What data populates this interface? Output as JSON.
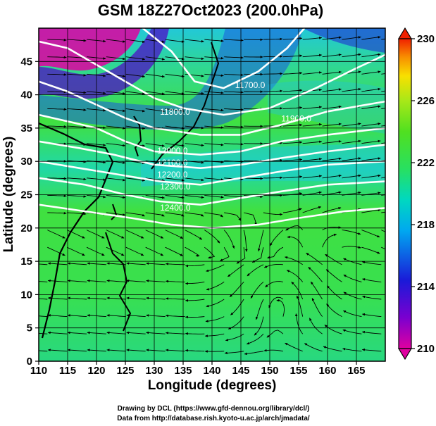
{
  "title": "GSM 18Z27Oct2023 (200.0hPa)",
  "xlabel": "Longitude (degrees)",
  "ylabel": "Latitude  (degrees)",
  "x_ticks": [
    "110",
    "115",
    "120",
    "125",
    "130",
    "135",
    "140",
    "145",
    "150",
    "155",
    "160",
    "165"
  ],
  "y_ticks": [
    "0",
    "5",
    "10",
    "15",
    "20",
    "25",
    "30",
    "35",
    "40",
    "45"
  ],
  "colorbar": {
    "ticks": [
      "210",
      "214",
      "218",
      "222",
      "226",
      "230"
    ],
    "min": 210,
    "max": 230,
    "colors": [
      "#e000a0",
      "#7a00d0",
      "#1a1ad8",
      "#00a8f0",
      "#00d8c0",
      "#28e060",
      "#50e020",
      "#a8e818",
      "#f8e000",
      "#f89000",
      "#f02000"
    ]
  },
  "contour_labels": [
    "11700.0",
    "11800.0",
    "11900.0",
    "12000.0",
    "12100.0",
    "12200.0",
    "12300.0",
    "12400.0"
  ],
  "credits": [
    "Drawing by DCL (https://www.gfd-dennou.org/library/dcl/)",
    "Data from http://database.rish.kyoto-u.ac.jp/arch/jmadata/"
  ],
  "map_data": {
    "type": "streamline-temperature-map",
    "lon_range": [
      110,
      170
    ],
    "lat_range": [
      0,
      50
    ],
    "field": "temperature (K) shaded, geopotential height contours (m), wind streamlines",
    "contour_levels": [
      11700,
      11800,
      11900,
      12000,
      12100,
      12200,
      12300,
      12400
    ]
  }
}
